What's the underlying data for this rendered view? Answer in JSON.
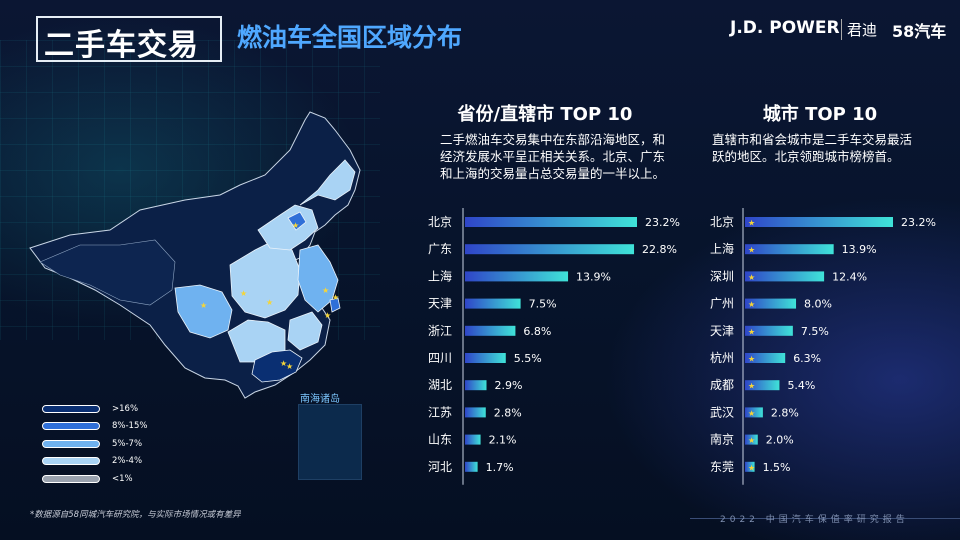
{
  "header": {
    "section": "二手车交易",
    "title": "燃油车全国区域分布",
    "brand_jdpower": "J.D. POWER",
    "brand_jundi": "君迪",
    "brand_58": "58汽车"
  },
  "map": {
    "inset_label": "南海诸岛",
    "legend": [
      {
        "label": ">16%",
        "color": "#0a2f72"
      },
      {
        "label": "8%-15%",
        "color": "#2f6fd8"
      },
      {
        "label": "5%-7%",
        "color": "#6fb2f0"
      },
      {
        "label": "2%-4%",
        "color": "#a9d3f4"
      },
      {
        "label": "<1%",
        "color": "#9aa2ae"
      }
    ]
  },
  "left": {
    "heading": "省份/直辖市 TOP 10",
    "description_lines": [
      "二手燃油车交易集中在东部沿海地区，和",
      "经济发展水平呈正相关关系。北京、广东",
      "和上海的交易量占总交易量的一半以上。"
    ]
  },
  "right": {
    "heading": "城市 TOP 10",
    "description_lines": [
      "直辖市和省会城市是二手车交易最活",
      "跃的地区。北京领跑城市榜榜首。"
    ]
  },
  "chart_data": [
    {
      "type": "bar",
      "orientation": "horizontal",
      "categories": [
        "北京",
        "广东",
        "上海",
        "天津",
        "浙江",
        "四川",
        "湖北",
        "江苏",
        "山东",
        "河北"
      ],
      "values": [
        23.2,
        22.8,
        13.9,
        7.5,
        6.8,
        5.5,
        2.9,
        2.8,
        2.1,
        1.7
      ],
      "value_labels": [
        "23.2%",
        "22.8%",
        "13.9%",
        "7.5%",
        "6.8%",
        "5.5%",
        "2.9%",
        "2.8%",
        "2.1%",
        "1.7%"
      ],
      "unit": "%",
      "bar_gradient": [
        "#2f45c8",
        "#3fe3d8"
      ]
    },
    {
      "type": "bar",
      "orientation": "horizontal",
      "categories": [
        "北京",
        "上海",
        "深圳",
        "广州",
        "天津",
        "杭州",
        "成都",
        "武汉",
        "南京",
        "东莞"
      ],
      "values": [
        23.2,
        13.9,
        12.4,
        8.0,
        7.5,
        6.3,
        5.4,
        2.8,
        2.0,
        1.5
      ],
      "value_labels": [
        "23.2%",
        "13.9%",
        "12.4%",
        "8.0%",
        "7.5%",
        "6.3%",
        "5.4%",
        "2.8%",
        "2.0%",
        "1.5%"
      ],
      "unit": "%",
      "marker": "★",
      "bar_gradient": [
        "#2f45c8",
        "#3fe3d8"
      ]
    }
  ],
  "footer": {
    "note": "*数据源自58同城汽车研究院，与实际市场情况或有差异",
    "report": "2022 中国汽车保值率研究报告"
  }
}
